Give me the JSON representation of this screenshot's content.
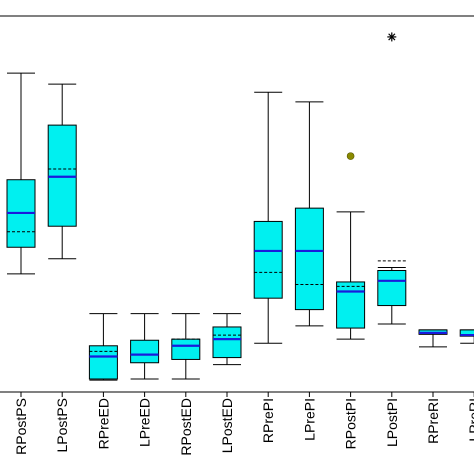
{
  "chart_data": {
    "type": "box",
    "title": "",
    "xlabel": "",
    "ylabel": "",
    "ylim": [
      0,
      100
    ],
    "grid": false,
    "legend": "none",
    "colors": {
      "box_fill": "#00f0f0",
      "median": "#1a1adc",
      "mean": "#1a1adc",
      "whisker": "#000000",
      "outlier_dot": "#8a8a00",
      "outlier_star": "#000000"
    },
    "boxes": [
      {
        "label": "RPostPS",
        "whisker_low": 30.4,
        "q1": 37.6,
        "median": 46.9,
        "mean": 41.8,
        "q3": 55.9,
        "whisker_high": 84.8,
        "outliers": []
      },
      {
        "label": "LPostPS",
        "whisker_low": 34.5,
        "q1": 43.3,
        "median": 56.7,
        "mean": 58.8,
        "q3": 70.7,
        "whisker_high": 81.8,
        "outliers": []
      },
      {
        "label": "RPreED",
        "whisker_low": 1.6,
        "q1": 1.9,
        "median": 8.0,
        "mean": 9.4,
        "q3": 10.9,
        "whisker_high": 19.6,
        "outliers": []
      },
      {
        "label": "LPreED",
        "whisker_low": 1.9,
        "q1": 6.3,
        "median": 8.5,
        "mean": 8.5,
        "q3": 12.4,
        "whisker_high": 19.6,
        "outliers": []
      },
      {
        "label": "RPostED",
        "whisker_low": 1.9,
        "q1": 7.2,
        "median": 10.9,
        "mean": 12.7,
        "q3": 12.7,
        "whisker_high": 19.6,
        "outliers": []
      },
      {
        "label": "LPostED",
        "whisker_low": 5.8,
        "q1": 7.7,
        "median": 12.7,
        "mean": 13.8,
        "q3": 16.0,
        "whisker_high": 19.6,
        "outliers": []
      },
      {
        "label": "RPrePI",
        "whisker_low": 11.6,
        "q1": 23.8,
        "median": 36.6,
        "mean": 30.8,
        "q3": 44.6,
        "whisker_high": 79.6,
        "outliers": []
      },
      {
        "label": "LPrePI",
        "whisker_low": 16.3,
        "q1": 20.7,
        "median": 36.6,
        "mean": 27.5,
        "q3": 48.2,
        "whisker_high": 77.0,
        "outliers": []
      },
      {
        "label": "RPostPI",
        "whisker_low": 12.7,
        "q1": 15.7,
        "median": 25.6,
        "mean": 27.0,
        "q3": 28.2,
        "whisker_high": 47.2,
        "outliers": [
          {
            "value": 62.3,
            "marker": "dot"
          }
        ]
      },
      {
        "label": "LPostPI",
        "whisker_low": 16.8,
        "q1": 21.8,
        "median": 28.5,
        "mean": 33.9,
        "q3": 31.3,
        "whisker_high": 32.1,
        "outliers": [
          {
            "value": 94.6,
            "marker": "star"
          }
        ]
      },
      {
        "label": "RPreRI",
        "whisker_low": 10.6,
        "q1": 14.0,
        "median": 14.4,
        "mean": 14.4,
        "q3": 15.2,
        "whisker_high": 15.2,
        "outliers": []
      },
      {
        "label": "LPreRI",
        "whisker_low": 11.6,
        "q1": 13.5,
        "median": 13.8,
        "mean": 13.8,
        "q3": 15.2,
        "whisker_high": 15.2,
        "outliers": []
      }
    ]
  }
}
